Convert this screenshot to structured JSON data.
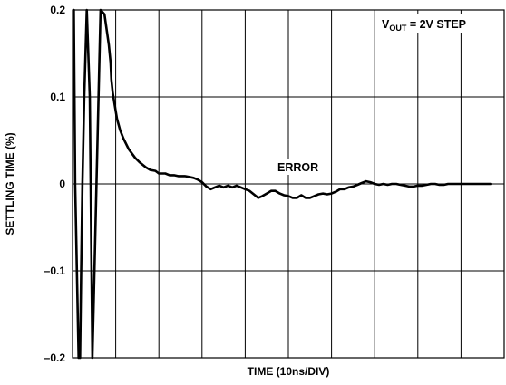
{
  "chart_data": {
    "type": "line",
    "title": "",
    "xlabel": "TIME (10ns/DIV)",
    "ylabel": "SETTLING TIME (%)",
    "xlim": [
      0,
      100
    ],
    "ylim": [
      -0.2,
      0.2
    ],
    "x_divisions": 10,
    "yticks": [
      {
        "value": 0.2,
        "label": "0.2"
      },
      {
        "value": 0.1,
        "label": "0.1"
      },
      {
        "value": 0,
        "label": "0"
      },
      {
        "value": -0.1,
        "label": "–0.1"
      },
      {
        "value": -0.2,
        "label": "–0.2"
      }
    ],
    "grid": true,
    "annotations": {
      "condition_prefix": "V",
      "condition_sub": "OUT",
      "condition_suffix": " = 2V STEP",
      "curve_label": "ERROR"
    },
    "series": [
      {
        "name": "",
        "x": [
          0.3,
          0.6,
          1.4,
          1.75,
          2.0,
          2.3,
          2.7,
          3.3,
          4.0,
          4.6,
          6.5,
          7.4,
          8.4,
          8.8,
          9.0,
          9.3,
          9.8,
          10.3,
          11.0,
          11.8,
          13.0,
          14.5,
          15.5,
          17.0,
          18.0,
          19.2,
          20.0,
          21.5,
          22.5,
          23.5,
          24.5,
          25.3,
          26.0,
          27.0,
          28.0,
          29.0,
          30.0,
          31.0,
          32.0,
          33.0,
          34.0,
          35.0,
          36.0,
          37.0,
          38.0,
          39.0,
          40.0,
          41.0,
          42.0,
          43.0,
          44.0,
          45.0,
          46.0,
          47.0,
          48.0,
          49.0,
          50.0,
          51.0,
          52.0,
          53.0,
          54.0,
          55.0,
          56.0,
          57.0,
          58.0,
          59.0,
          60.0,
          61.0,
          62.0,
          63.0,
          64.0,
          65.0,
          66.0,
          67.0,
          68.0,
          69.0,
          70.0,
          71.0,
          72.0,
          73.0,
          74.0,
          75.0,
          76.0,
          77.0,
          78.0,
          79.0,
          80.0,
          81.0,
          82.0,
          83.0,
          84.0,
          85.0,
          86.0,
          87.0,
          88.0,
          89.0,
          90.0,
          91.0,
          92.0,
          93.0,
          94.0,
          95.0,
          96.0,
          97.0
        ],
        "values": [
          0.2,
          0.0,
          -0.2,
          -0.2,
          -0.1,
          0.0,
          0.1,
          0.2,
          0.1,
          -0.2,
          0.2,
          0.195,
          0.16,
          0.14,
          0.12,
          0.105,
          0.09,
          0.075,
          0.062,
          0.052,
          0.04,
          0.03,
          0.025,
          0.019,
          0.016,
          0.015,
          0.012,
          0.012,
          0.01,
          0.01,
          0.009,
          0.009,
          0.009,
          0.008,
          0.007,
          0.005,
          0.002,
          -0.003,
          -0.006,
          -0.004,
          -0.002,
          -0.004,
          -0.002,
          -0.004,
          -0.002,
          -0.004,
          -0.006,
          -0.008,
          -0.012,
          -0.016,
          -0.014,
          -0.011,
          -0.008,
          -0.008,
          -0.011,
          -0.013,
          -0.014,
          -0.016,
          -0.016,
          -0.013,
          -0.016,
          -0.016,
          -0.014,
          -0.012,
          -0.011,
          -0.012,
          -0.011,
          -0.009,
          -0.006,
          -0.006,
          -0.004,
          -0.003,
          -0.001,
          0.001,
          0.003,
          0.002,
          0.0,
          -0.001,
          0.0,
          -0.001,
          0.0,
          0.0,
          -0.001,
          -0.002,
          -0.003,
          -0.003,
          -0.002,
          -0.002,
          -0.001,
          0.0,
          0.0,
          -0.001,
          -0.001,
          0.0,
          0.0,
          0.0,
          0.0,
          0.0,
          0.0,
          0.0,
          0.0,
          0.0,
          0.0,
          0.0
        ]
      }
    ]
  }
}
